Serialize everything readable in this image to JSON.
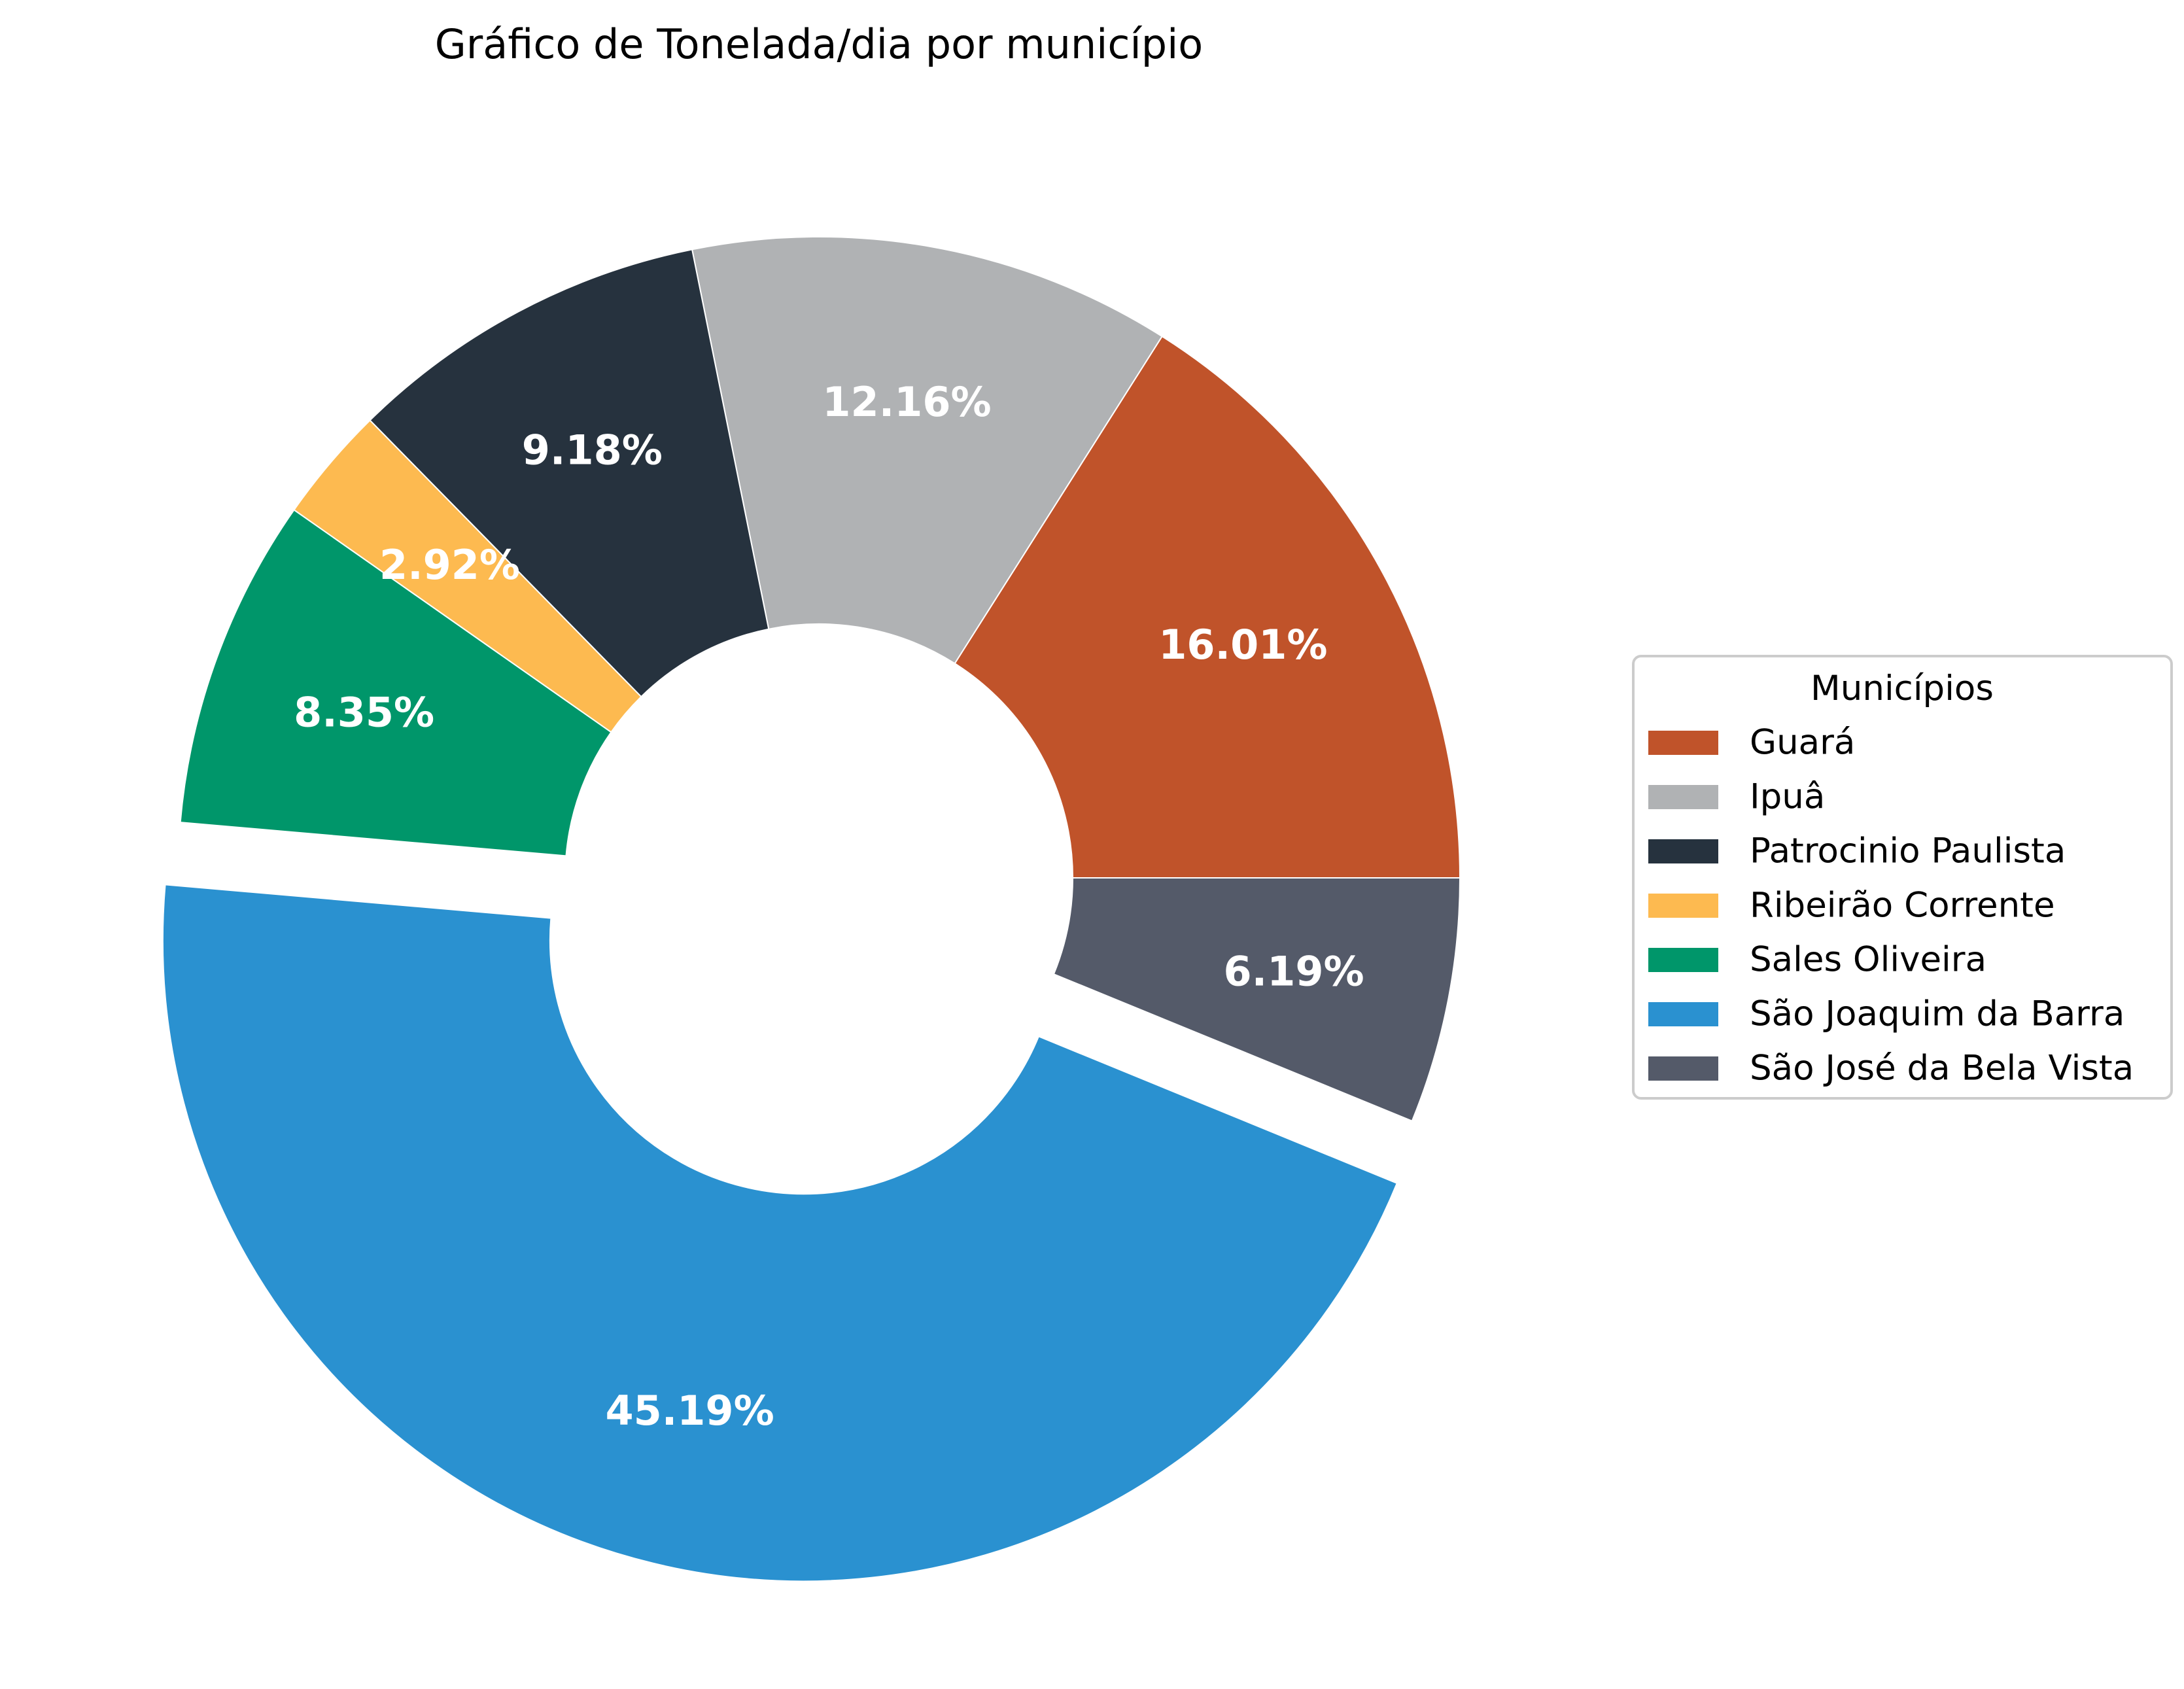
{
  "chart_data": {
    "type": "pie",
    "title": "Gráfico de Tonelada/dia por município",
    "donut": true,
    "legend_title": "Municípios",
    "legend_position": "right",
    "start_angle_deg": 0,
    "direction": "counterclockwise",
    "exploded": [
      "São Joaquim da Barra"
    ],
    "slices": [
      {
        "name": "Guará",
        "percent": 16.01,
        "label": "16.01%",
        "color": "#C0532A"
      },
      {
        "name": "Ipuâ",
        "percent": 12.16,
        "label": "12.16%",
        "color": "#B0B2B4"
      },
      {
        "name": "Patrocinio Paulista",
        "percent": 9.18,
        "label": "9.18%",
        "color": "#26323E"
      },
      {
        "name": "Ribeirão Corrente",
        "percent": 2.92,
        "label": "2.92%",
        "color": "#FDBA50"
      },
      {
        "name": "Sales Oliveira",
        "percent": 8.35,
        "label": "8.35%",
        "color": "#00966A"
      },
      {
        "name": "São Joaquim da Barra",
        "percent": 45.19,
        "label": "45.19%",
        "color": "#2A91D0"
      },
      {
        "name": "São José da Bela Vista",
        "percent": 6.19,
        "label": "6.19%",
        "color": "#545A69"
      }
    ]
  }
}
